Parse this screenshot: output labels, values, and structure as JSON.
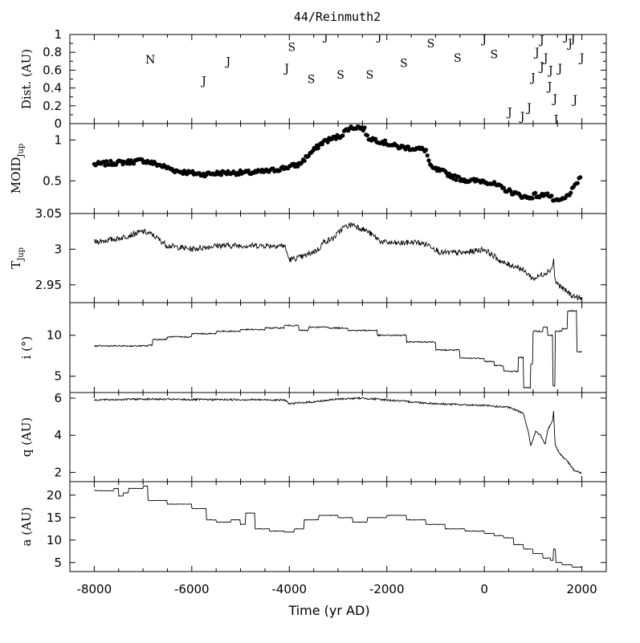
{
  "title": "44/Reinmuth2",
  "xlabel": "Time (yr AD)",
  "x_ticks": [
    -8000,
    -6000,
    -4000,
    -2000,
    0,
    2000
  ],
  "xlim": [
    -8500,
    2500
  ],
  "chart_data": [
    {
      "type": "scatter",
      "name": "encounters",
      "ylabel": "Dist. (AU)",
      "ylim": [
        0,
        1
      ],
      "y_ticks": [
        "0",
        "0.2",
        "0.4",
        "0.6",
        "0.8",
        "1"
      ],
      "points": [
        {
          "x": -6850,
          "y": 0.72,
          "label": "N"
        },
        {
          "x": -5750,
          "y": 0.48,
          "label": "J"
        },
        {
          "x": -5250,
          "y": 0.7,
          "label": "J"
        },
        {
          "x": -4050,
          "y": 0.62,
          "label": "J"
        },
        {
          "x": -3950,
          "y": 0.86,
          "label": "S"
        },
        {
          "x": -3550,
          "y": 0.5,
          "label": "S"
        },
        {
          "x": -3250,
          "y": 0.98,
          "label": "J"
        },
        {
          "x": -2950,
          "y": 0.55,
          "label": "S"
        },
        {
          "x": -2350,
          "y": 0.55,
          "label": "S"
        },
        {
          "x": -2150,
          "y": 0.98,
          "label": "J"
        },
        {
          "x": -1650,
          "y": 0.68,
          "label": "S"
        },
        {
          "x": -1100,
          "y": 0.9,
          "label": "S"
        },
        {
          "x": -550,
          "y": 0.74,
          "label": "S"
        },
        {
          "x": 0,
          "y": 0.95,
          "label": "J"
        },
        {
          "x": 200,
          "y": 0.78,
          "label": "S"
        },
        {
          "x": 520,
          "y": 0.13,
          "label": "J"
        },
        {
          "x": 780,
          "y": 0.08,
          "label": "J"
        },
        {
          "x": 920,
          "y": 0.18,
          "label": "J"
        },
        {
          "x": 1000,
          "y": 0.52,
          "label": "J"
        },
        {
          "x": 1080,
          "y": 0.8,
          "label": "J"
        },
        {
          "x": 1180,
          "y": 0.94,
          "label": "J"
        },
        {
          "x": 1180,
          "y": 0.64,
          "label": "J"
        },
        {
          "x": 1260,
          "y": 0.74,
          "label": "J"
        },
        {
          "x": 1340,
          "y": 0.42,
          "label": "J"
        },
        {
          "x": 1360,
          "y": 0.6,
          "label": "J"
        },
        {
          "x": 1450,
          "y": 0.28,
          "label": "J"
        },
        {
          "x": 1470,
          "y": 0.05,
          "label": "J"
        },
        {
          "x": 1550,
          "y": 0.62,
          "label": "J"
        },
        {
          "x": 1680,
          "y": 0.98,
          "label": "J"
        },
        {
          "x": 1760,
          "y": 0.9,
          "label": "J"
        },
        {
          "x": 1820,
          "y": 0.96,
          "label": "J"
        },
        {
          "x": 1860,
          "y": 0.27,
          "label": "J"
        },
        {
          "x": 2000,
          "y": 0.74,
          "label": "J"
        }
      ]
    },
    {
      "type": "scatter",
      "name": "MOID",
      "ylabel": "MOID",
      "ylabel_sub": "Jup",
      "ylim": [
        0.1,
        1.2
      ],
      "y_ticks": [
        "0.5",
        "1"
      ],
      "y_tick_values": [
        0.5,
        1
      ],
      "keypoints": [
        [
          -8000,
          0.7
        ],
        [
          -7600,
          0.72
        ],
        [
          -7300,
          0.73
        ],
        [
          -7000,
          0.75
        ],
        [
          -6700,
          0.7
        ],
        [
          -6300,
          0.62
        ],
        [
          -5800,
          0.58
        ],
        [
          -5300,
          0.6
        ],
        [
          -4800,
          0.6
        ],
        [
          -4400,
          0.62
        ],
        [
          -4100,
          0.66
        ],
        [
          -3800,
          0.7
        ],
        [
          -3600,
          0.82
        ],
        [
          -3300,
          0.98
        ],
        [
          -2950,
          1.05
        ],
        [
          -2800,
          1.14
        ],
        [
          -2600,
          1.16
        ],
        [
          -2450,
          1.13
        ],
        [
          -2400,
          1.03
        ],
        [
          -2100,
          0.98
        ],
        [
          -1800,
          0.92
        ],
        [
          -1200,
          0.88
        ],
        [
          -1100,
          0.66
        ],
        [
          -800,
          0.6
        ],
        [
          -600,
          0.54
        ],
        [
          -300,
          0.5
        ],
        [
          0,
          0.5
        ],
        [
          200,
          0.46
        ],
        [
          400,
          0.4
        ],
        [
          700,
          0.33
        ],
        [
          900,
          0.29
        ],
        [
          1050,
          0.33
        ],
        [
          1150,
          0.3
        ],
        [
          1250,
          0.36
        ],
        [
          1400,
          0.28
        ],
        [
          1450,
          0.24
        ],
        [
          1650,
          0.28
        ],
        [
          1850,
          0.42
        ],
        [
          1980,
          0.57
        ]
      ]
    },
    {
      "type": "line",
      "name": "Tisserand",
      "ylabel": "T",
      "ylabel_sub": "Jup",
      "ylim": [
        2.925,
        3.05
      ],
      "y_ticks": [
        "2.95",
        "3",
        "3.05"
      ],
      "y_tick_values": [
        2.95,
        3.0,
        3.05
      ],
      "keypoints": [
        [
          -8000,
          3.01
        ],
        [
          -7500,
          3.015
        ],
        [
          -7000,
          3.025
        ],
        [
          -6800,
          3.02
        ],
        [
          -6500,
          3.005
        ],
        [
          -6000,
          3.0
        ],
        [
          -5500,
          3.005
        ],
        [
          -5000,
          3.005
        ],
        [
          -4500,
          3.005
        ],
        [
          -4100,
          3.005
        ],
        [
          -4000,
          2.985
        ],
        [
          -3700,
          2.99
        ],
        [
          -3400,
          3.0
        ],
        [
          -3300,
          3.01
        ],
        [
          -3100,
          3.015
        ],
        [
          -2900,
          3.03
        ],
        [
          -2700,
          3.035
        ],
        [
          -2400,
          3.025
        ],
        [
          -2100,
          3.01
        ],
        [
          -1800,
          3.008
        ],
        [
          -1400,
          3.01
        ],
        [
          -1100,
          3.005
        ],
        [
          -900,
          2.995
        ],
        [
          -400,
          2.995
        ],
        [
          0,
          3.0
        ],
        [
          200,
          2.99
        ],
        [
          400,
          2.98
        ],
        [
          700,
          2.975
        ],
        [
          900,
          2.965
        ],
        [
          1000,
          2.958
        ],
        [
          1200,
          2.965
        ],
        [
          1380,
          2.972
        ],
        [
          1420,
          2.985
        ],
        [
          1450,
          2.955
        ],
        [
          1600,
          2.945
        ],
        [
          1800,
          2.935
        ],
        [
          2000,
          2.93
        ]
      ]
    },
    {
      "type": "line",
      "name": "inclination",
      "ylabel": "i (°)",
      "ylim": [
        3,
        14
      ],
      "y_ticks": [
        "5",
        "10"
      ],
      "y_tick_values": [
        5,
        10
      ],
      "steps": [
        [
          -8000,
          8.7
        ],
        [
          -6900,
          8.8
        ],
        [
          -6800,
          9.5
        ],
        [
          -6500,
          9.8
        ],
        [
          -6000,
          10.2
        ],
        [
          -5500,
          10.5
        ],
        [
          -5000,
          10.7
        ],
        [
          -4500,
          10.9
        ],
        [
          -4100,
          11.2
        ],
        [
          -3800,
          10.6
        ],
        [
          -3600,
          11.0
        ],
        [
          -3200,
          10.9
        ],
        [
          -2800,
          10.6
        ],
        [
          -2200,
          10.0
        ],
        [
          -1600,
          9.2
        ],
        [
          -1000,
          8.2
        ],
        [
          -500,
          7.2
        ],
        [
          0,
          6.8
        ],
        [
          200,
          6.3
        ],
        [
          400,
          5.6
        ],
        [
          700,
          7.3
        ],
        [
          800,
          3.6
        ],
        [
          950,
          6.5
        ],
        [
          1000,
          10.5
        ],
        [
          1200,
          11.0
        ],
        [
          1300,
          10.0
        ],
        [
          1400,
          3.8
        ],
        [
          1450,
          10.5
        ],
        [
          1600,
          10.8
        ],
        [
          1700,
          13.0
        ],
        [
          1900,
          8.0
        ],
        [
          2000,
          7.0
        ]
      ]
    },
    {
      "type": "line",
      "name": "perihelion",
      "ylabel": "q (AU)",
      "ylim": [
        1.5,
        6.3
      ],
      "y_ticks": [
        "2",
        "4",
        "6"
      ],
      "y_tick_values": [
        2,
        4,
        6
      ],
      "keypoints": [
        [
          -8000,
          5.9
        ],
        [
          -7000,
          5.95
        ],
        [
          -6000,
          5.92
        ],
        [
          -5000,
          5.92
        ],
        [
          -4100,
          5.9
        ],
        [
          -4000,
          5.7
        ],
        [
          -3500,
          5.8
        ],
        [
          -3000,
          5.95
        ],
        [
          -2500,
          6.0
        ],
        [
          -2000,
          5.9
        ],
        [
          -1500,
          5.8
        ],
        [
          -1000,
          5.7
        ],
        [
          -500,
          5.65
        ],
        [
          0,
          5.6
        ],
        [
          500,
          5.5
        ],
        [
          800,
          5.2
        ],
        [
          900,
          4.2
        ],
        [
          950,
          3.4
        ],
        [
          1050,
          4.2
        ],
        [
          1150,
          4.0
        ],
        [
          1250,
          3.5
        ],
        [
          1300,
          4.3
        ],
        [
          1400,
          4.8
        ],
        [
          1420,
          5.3
        ],
        [
          1450,
          3.5
        ],
        [
          1550,
          3.0
        ],
        [
          1700,
          2.6
        ],
        [
          1850,
          2.1
        ],
        [
          2000,
          1.95
        ]
      ]
    },
    {
      "type": "line",
      "name": "semimajor-axis",
      "ylabel": "a (AU)",
      "ylim": [
        3,
        23
      ],
      "y_ticks": [
        "5",
        "10",
        "15",
        "20"
      ],
      "y_tick_values": [
        5,
        10,
        15,
        20
      ],
      "steps": [
        [
          -8000,
          21.0
        ],
        [
          -7600,
          21.5
        ],
        [
          -7500,
          19.8
        ],
        [
          -7400,
          20.5
        ],
        [
          -7300,
          21.5
        ],
        [
          -7000,
          22.0
        ],
        [
          -6900,
          18.8
        ],
        [
          -6500,
          18.0
        ],
        [
          -6000,
          17.0
        ],
        [
          -5700,
          14.5
        ],
        [
          -5500,
          14.0
        ],
        [
          -5200,
          14.5
        ],
        [
          -5000,
          13.5
        ],
        [
          -4900,
          16.0
        ],
        [
          -4700,
          12.5
        ],
        [
          -4400,
          12.0
        ],
        [
          -4100,
          11.8
        ],
        [
          -3900,
          12.5
        ],
        [
          -3700,
          14.5
        ],
        [
          -3400,
          15.5
        ],
        [
          -3000,
          15.0
        ],
        [
          -2700,
          14.0
        ],
        [
          -2400,
          15.0
        ],
        [
          -2000,
          15.5
        ],
        [
          -1600,
          14.5
        ],
        [
          -1200,
          13.5
        ],
        [
          -800,
          12.5
        ],
        [
          -400,
          12.0
        ],
        [
          0,
          11.5
        ],
        [
          200,
          11.0
        ],
        [
          400,
          10.5
        ],
        [
          600,
          9.0
        ],
        [
          800,
          8.0
        ],
        [
          1000,
          7.0
        ],
        [
          1200,
          6.0
        ],
        [
          1350,
          5.5
        ],
        [
          1420,
          8.0
        ],
        [
          1460,
          5.0
        ],
        [
          1600,
          4.5
        ],
        [
          1800,
          4.0
        ],
        [
          2000,
          4.0
        ]
      ]
    }
  ]
}
